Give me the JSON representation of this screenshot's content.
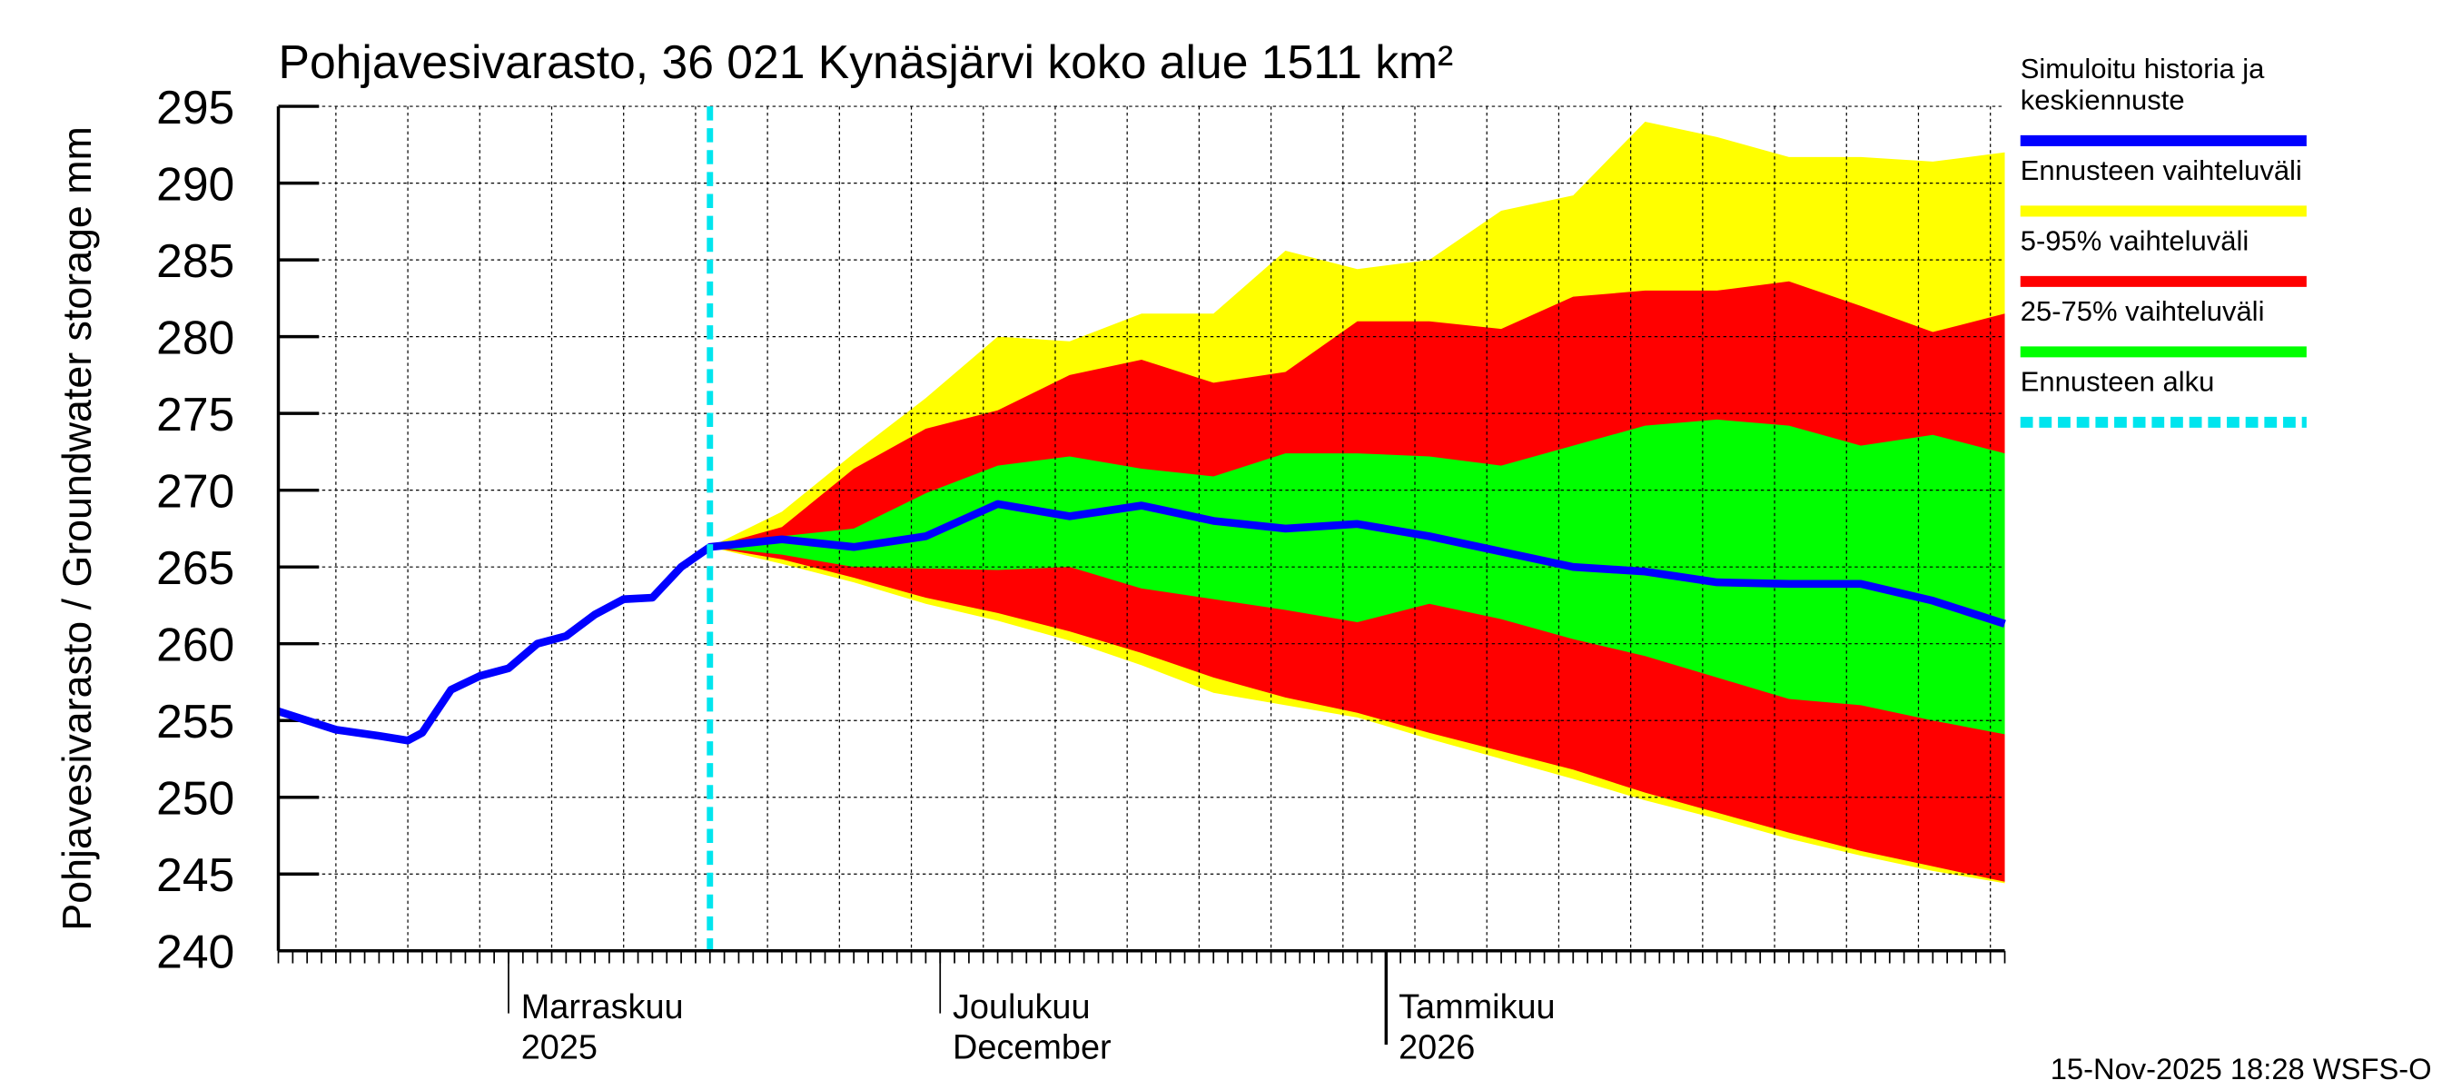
{
  "chart_data": {
    "type": "area",
    "title": "Pohjavesivarasto, 36 021 Kynäsjärvi koko alue 1511 km²",
    "ylabel": "Pohjavesivarasto / Groundwater storage   mm",
    "ylim": [
      240,
      295
    ],
    "yticks": [
      240,
      245,
      250,
      255,
      260,
      265,
      270,
      275,
      280,
      285,
      290,
      295
    ],
    "xlim": [
      "2025-10-16",
      "2026-02-13"
    ],
    "grid": true,
    "month_labels": [
      {
        "date": "2025-11-01",
        "line1": "Marraskuu",
        "line2": "2025"
      },
      {
        "date": "2025-12-01",
        "line1": "Joulukuu",
        "line2": "December"
      },
      {
        "date": "2026-01-01",
        "line1": "Tammikuu",
        "line2": "2026"
      }
    ],
    "forecast_start": "2025-11-15",
    "history": {
      "x": [
        "2025-10-16",
        "2025-10-20",
        "2025-10-23",
        "2025-10-25",
        "2025-10-26",
        "2025-10-28",
        "2025-10-30",
        "2025-11-01",
        "2025-11-03",
        "2025-11-05",
        "2025-11-07",
        "2025-11-09",
        "2025-11-11",
        "2025-11-13",
        "2025-11-15"
      ],
      "values": [
        255.6,
        254.4,
        254.0,
        253.7,
        254.2,
        257.0,
        257.9,
        258.4,
        260.0,
        260.5,
        261.9,
        262.9,
        263.0,
        265.0,
        266.3
      ]
    },
    "forecast_x": [
      "2025-11-15",
      "2025-11-20",
      "2025-11-25",
      "2025-11-30",
      "2025-12-05",
      "2025-12-10",
      "2025-12-15",
      "2025-12-20",
      "2025-12-25",
      "2025-12-30",
      "2026-01-04",
      "2026-01-09",
      "2026-01-14",
      "2026-01-19",
      "2026-01-24",
      "2026-01-29",
      "2026-02-03",
      "2026-02-08",
      "2026-02-13"
    ],
    "series": [
      {
        "name": "Ennusteen vaihteluväli",
        "color": "#ffff00",
        "upper": [
          266.3,
          268.6,
          272.4,
          276.0,
          280.0,
          279.7,
          281.5,
          281.5,
          285.6,
          284.4,
          285.0,
          288.2,
          289.2,
          294.0,
          293.0,
          291.7,
          291.7,
          291.4,
          292.0
        ],
        "lower": [
          266.3,
          265.2,
          264.0,
          262.6,
          261.5,
          260.2,
          258.6,
          256.8,
          256.0,
          255.2,
          253.8,
          252.5,
          251.2,
          249.8,
          248.6,
          247.3,
          246.2,
          245.2,
          244.4
        ]
      },
      {
        "name": "5-95% vaihteluväli",
        "color": "#ff0000",
        "upper": [
          266.3,
          267.6,
          271.4,
          274.0,
          275.2,
          277.5,
          278.5,
          277.0,
          277.7,
          281.0,
          281.0,
          280.5,
          282.6,
          283.0,
          283.0,
          283.6,
          282.0,
          280.3,
          281.5
        ],
        "lower": [
          266.3,
          265.5,
          264.3,
          263.0,
          262.0,
          260.8,
          259.4,
          257.8,
          256.5,
          255.5,
          254.2,
          253.0,
          251.8,
          250.3,
          249.0,
          247.7,
          246.5,
          245.5,
          244.5
        ]
      },
      {
        "name": "25-75% vaihteluväli",
        "color": "#00ff00",
        "upper": [
          266.3,
          267.0,
          267.5,
          269.8,
          271.6,
          272.2,
          271.4,
          270.9,
          272.4,
          272.4,
          272.2,
          271.6,
          272.9,
          274.2,
          274.6,
          274.2,
          272.9,
          273.6,
          272.4
        ],
        "lower": [
          266.3,
          265.8,
          265.0,
          264.9,
          264.8,
          265.0,
          263.6,
          262.9,
          262.2,
          261.4,
          262.6,
          261.6,
          260.3,
          259.2,
          257.8,
          256.4,
          256.0,
          255.0,
          254.1
        ]
      },
      {
        "name": "Simuloitu historia ja keskiennuste",
        "color": "#0000ff",
        "values": [
          266.3,
          266.8,
          266.3,
          267.0,
          269.1,
          268.3,
          269.0,
          268.0,
          267.5,
          267.8,
          267.0,
          266.0,
          265.0,
          264.7,
          264.0,
          263.9,
          263.9,
          262.8,
          261.3
        ]
      }
    ],
    "legend": {
      "placement": "right",
      "entries": [
        {
          "label": "Simuloitu historia ja",
          "label2": "keskiennuste",
          "color": "#0000ff",
          "style": "solid"
        },
        {
          "label": "Ennusteen vaihteluväli",
          "color": "#ffff00",
          "style": "solid"
        },
        {
          "label": "5-95% vaihteluväli",
          "color": "#ff0000",
          "style": "solid"
        },
        {
          "label": "25-75% vaihteluväli",
          "color": "#00ff00",
          "style": "solid"
        },
        {
          "label": "Ennusteen alku",
          "color": "#00e5ee",
          "style": "dashed"
        }
      ]
    },
    "footer": "15-Nov-2025 18:28 WSFS-O"
  }
}
